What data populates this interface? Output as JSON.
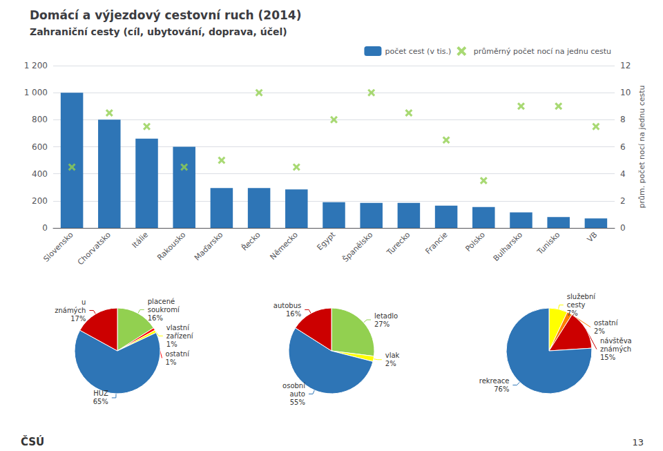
{
  "chart_data": [
    {
      "type": "bar",
      "title": "Domácí a výjezdový cestovní ruch (2014)",
      "subtitle": "Zahraniční cesty (cíl, ubytování, doprava, účel)",
      "categories": [
        "Slovensko",
        "Chorvatsko",
        "Itálie",
        "Rakousko",
        "Maďarsko",
        "Řecko",
        "Německo",
        "Egypt",
        "Španělsko",
        "Turecko",
        "Francie",
        "Polsko",
        "Bulharsko",
        "Tunisko",
        "VB"
      ],
      "series": [
        {
          "name": "počet cest (v tis.)",
          "type": "bar",
          "color": "#2e75b6",
          "values": [
            1000,
            800,
            660,
            600,
            295,
            295,
            285,
            190,
            185,
            185,
            165,
            155,
            115,
            80,
            70
          ]
        },
        {
          "name": "průměrný počet nocí na jednu cestu",
          "type": "scatter",
          "marker": "x",
          "color": "#92d050",
          "axis": "y2",
          "values": [
            4.5,
            8.5,
            7.5,
            4.5,
            5.0,
            10.0,
            4.5,
            8.0,
            10.0,
            8.5,
            6.5,
            3.5,
            9.0,
            9.0,
            7.5
          ]
        }
      ],
      "ylim": [
        0,
        1200
      ],
      "yticks": [
        0,
        200,
        400,
        600,
        800,
        {
          "value": 1000,
          "label": "1 000"
        },
        {
          "value": 1200,
          "label": "1 200"
        }
      ],
      "y2label": "prům. počet nocí na jednu cestu",
      "y2lim": [
        0,
        12
      ],
      "y2ticks": [
        0,
        2,
        4,
        6,
        8,
        10,
        12
      ],
      "grid": true,
      "legend": "upper right",
      "annotations": [
        "ČSÚ",
        "13"
      ]
    },
    {
      "type": "pie",
      "categories": [
        "placené soukromí",
        "ostatní",
        "vlastní zařízení",
        "HUZ",
        "u známých"
      ],
      "values": [
        16,
        1,
        1,
        65,
        17
      ],
      "value_labels": [
        "16%",
        "1%",
        "1%",
        "65%",
        "17%"
      ],
      "colors": [
        "#92d050",
        "#ff0000",
        "#ffff00",
        "#2e75b6",
        "#cc0000"
      ],
      "data_labels": true
    },
    {
      "type": "pie",
      "categories": [
        "letadlo",
        "vlak",
        "osobní auto",
        "autobus"
      ],
      "values": [
        27,
        2,
        55,
        16
      ],
      "value_labels": [
        "27%",
        "2%",
        "55%",
        "16%"
      ],
      "colors": [
        "#92d050",
        "#ffff00",
        "#2e75b6",
        "#cc0000"
      ],
      "data_labels": true
    },
    {
      "type": "pie",
      "categories": [
        "služební cesty",
        "ostatní",
        "návštěva známých",
        "rekreace"
      ],
      "values": [
        7,
        2,
        15,
        76
      ],
      "value_labels": [
        "7%",
        "2%",
        "15%",
        "76%"
      ],
      "colors": [
        "#ffff00",
        "#ff7f00",
        "#cc0000",
        "#2e75b6"
      ],
      "data_labels": true
    }
  ]
}
